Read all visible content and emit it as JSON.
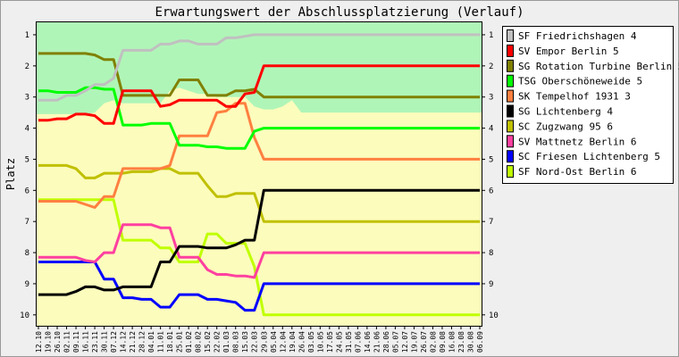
{
  "chart_data": {
    "type": "line",
    "title": "Erwartungswert der Abschlussplatzierung (Verlauf)",
    "ylabel": "Platz",
    "xlabel": "",
    "y_ticks": [
      1,
      2,
      3,
      4,
      5,
      6,
      7,
      8,
      9,
      10
    ],
    "ylim": [
      10.35,
      0.6
    ],
    "y_inverted": true,
    "grid": false,
    "legend_position": "right",
    "background_zones": [
      {
        "name": "top",
        "color": "#b0f5b8"
      },
      {
        "name": "bottom",
        "color": "#fcfcbc"
      }
    ],
    "categories": [
      "12.10",
      "19.10",
      "26.10",
      "02.11",
      "09.11",
      "16.11",
      "23.11",
      "30.11",
      "07.12",
      "14.12",
      "21.12",
      "28.12",
      "04.01",
      "11.01",
      "18.01",
      "25.01",
      "01.02",
      "08.02",
      "15.02",
      "22.02",
      "01.03",
      "08.03",
      "15.03",
      "22.03",
      "29.03",
      "05.04",
      "12.04",
      "19.04",
      "26.04",
      "03.05",
      "10.05",
      "17.05",
      "24.05",
      "31.05",
      "07.06",
      "14.06",
      "21.06",
      "28.06",
      "05.07",
      "12.07",
      "19.07",
      "26.07",
      "02.08",
      "09.08",
      "16.08",
      "23.08",
      "30.08",
      "06.09"
    ],
    "boundary": [
      3.55,
      3.55,
      3.55,
      3.55,
      3.55,
      3.55,
      3.5,
      3.2,
      3.1,
      3.2,
      3.2,
      3.2,
      3.2,
      3.2,
      2.8,
      2.7,
      2.8,
      2.9,
      2.9,
      3.0,
      3.0,
      3.0,
      3.0,
      3.3,
      3.4,
      3.4,
      3.3,
      3.1,
      3.5,
      3.5,
      3.5,
      3.5,
      3.5,
      3.5,
      3.5,
      3.5,
      3.5,
      3.5,
      3.5,
      3.5,
      3.5,
      3.5,
      3.5,
      3.5,
      3.5,
      3.5,
      3.5,
      3.5
    ],
    "series": [
      {
        "name": "SF Friedrichshagen 4",
        "color": "#c0c0c0",
        "values": [
          3.1,
          3.1,
          3.1,
          2.95,
          2.95,
          2.8,
          2.6,
          2.6,
          2.4,
          1.5,
          1.5,
          1.5,
          1.5,
          1.3,
          1.3,
          1.2,
          1.2,
          1.3,
          1.3,
          1.3,
          1.1,
          1.1,
          1.05,
          1.0,
          1.0,
          1.0,
          1.0,
          1.0,
          1.0,
          1.0,
          1.0,
          1.0,
          1.0,
          1.0,
          1.0,
          1.0,
          1.0,
          1.0,
          1.0,
          1.0,
          1.0,
          1.0,
          1.0,
          1.0,
          1.0,
          1.0,
          1.0,
          1.0
        ]
      },
      {
        "name": "SV Empor Berlin 5",
        "color": "#ff0000",
        "values": [
          3.75,
          3.75,
          3.7,
          3.7,
          3.55,
          3.55,
          3.6,
          3.85,
          3.85,
          2.8,
          2.8,
          2.8,
          2.8,
          3.3,
          3.25,
          3.1,
          3.1,
          3.1,
          3.1,
          3.1,
          3.3,
          3.3,
          2.9,
          2.85,
          2.0,
          2.0,
          2.0,
          2.0,
          2.0,
          2.0,
          2.0,
          2.0,
          2.0,
          2.0,
          2.0,
          2.0,
          2.0,
          2.0,
          2.0,
          2.0,
          2.0,
          2.0,
          2.0,
          2.0,
          2.0,
          2.0,
          2.0,
          2.0
        ]
      },
      {
        "name": "SG Rotation Turbine Berlin 5",
        "color": "#808000",
        "values": [
          1.6,
          1.6,
          1.6,
          1.6,
          1.6,
          1.6,
          1.65,
          1.8,
          1.8,
          2.95,
          2.95,
          2.95,
          2.95,
          2.95,
          2.95,
          2.45,
          2.45,
          2.45,
          2.95,
          2.95,
          2.95,
          2.8,
          2.8,
          2.75,
          3.0,
          3.0,
          3.0,
          3.0,
          3.0,
          3.0,
          3.0,
          3.0,
          3.0,
          3.0,
          3.0,
          3.0,
          3.0,
          3.0,
          3.0,
          3.0,
          3.0,
          3.0,
          3.0,
          3.0,
          3.0,
          3.0,
          3.0,
          3.0
        ]
      },
      {
        "name": "TSG Oberschöneweide 5",
        "color": "#00ff00",
        "values": [
          2.8,
          2.8,
          2.85,
          2.85,
          2.85,
          2.7,
          2.7,
          2.75,
          2.75,
          3.9,
          3.9,
          3.9,
          3.85,
          3.85,
          3.85,
          4.55,
          4.55,
          4.55,
          4.6,
          4.6,
          4.65,
          4.65,
          4.65,
          4.1,
          4.0,
          4.0,
          4.0,
          4.0,
          4.0,
          4.0,
          4.0,
          4.0,
          4.0,
          4.0,
          4.0,
          4.0,
          4.0,
          4.0,
          4.0,
          4.0,
          4.0,
          4.0,
          4.0,
          4.0,
          4.0,
          4.0,
          4.0,
          4.0
        ]
      },
      {
        "name": "SK Tempelhof 1931 3",
        "color": "#ff8040",
        "values": [
          6.35,
          6.35,
          6.35,
          6.35,
          6.35,
          6.45,
          6.55,
          6.2,
          6.2,
          5.3,
          5.3,
          5.3,
          5.3,
          5.3,
          5.2,
          4.25,
          4.25,
          4.25,
          4.25,
          3.5,
          3.45,
          3.2,
          3.2,
          4.3,
          5.0,
          5.0,
          5.0,
          5.0,
          5.0,
          5.0,
          5.0,
          5.0,
          5.0,
          5.0,
          5.0,
          5.0,
          5.0,
          5.0,
          5.0,
          5.0,
          5.0,
          5.0,
          5.0,
          5.0,
          5.0,
          5.0,
          5.0,
          5.0
        ]
      },
      {
        "name": "SG Lichtenberg 4",
        "color": "#000000",
        "values": [
          9.35,
          9.35,
          9.35,
          9.35,
          9.25,
          9.1,
          9.1,
          9.2,
          9.2,
          9.1,
          9.1,
          9.1,
          9.1,
          8.3,
          8.3,
          7.8,
          7.8,
          7.8,
          7.85,
          7.85,
          7.85,
          7.75,
          7.6,
          7.6,
          6.0,
          6.0,
          6.0,
          6.0,
          6.0,
          6.0,
          6.0,
          6.0,
          6.0,
          6.0,
          6.0,
          6.0,
          6.0,
          6.0,
          6.0,
          6.0,
          6.0,
          6.0,
          6.0,
          6.0,
          6.0,
          6.0,
          6.0,
          6.0
        ]
      },
      {
        "name": "SC Zugzwang 95 6",
        "color": "#c0c000",
        "values": [
          5.2,
          5.2,
          5.2,
          5.2,
          5.3,
          5.6,
          5.6,
          5.45,
          5.45,
          5.45,
          5.4,
          5.4,
          5.4,
          5.3,
          5.3,
          5.45,
          5.45,
          5.45,
          5.85,
          6.2,
          6.2,
          6.1,
          6.1,
          6.1,
          7.0,
          7.0,
          7.0,
          7.0,
          7.0,
          7.0,
          7.0,
          7.0,
          7.0,
          7.0,
          7.0,
          7.0,
          7.0,
          7.0,
          7.0,
          7.0,
          7.0,
          7.0,
          7.0,
          7.0,
          7.0,
          7.0,
          7.0,
          7.0
        ]
      },
      {
        "name": "SV Mattnetz Berlin 6",
        "color": "#ff40a0",
        "values": [
          8.15,
          8.15,
          8.15,
          8.15,
          8.15,
          8.25,
          8.3,
          8.0,
          8.0,
          7.1,
          7.1,
          7.1,
          7.1,
          7.2,
          7.2,
          8.15,
          8.15,
          8.15,
          8.55,
          8.7,
          8.7,
          8.75,
          8.75,
          8.8,
          8.0,
          8.0,
          8.0,
          8.0,
          8.0,
          8.0,
          8.0,
          8.0,
          8.0,
          8.0,
          8.0,
          8.0,
          8.0,
          8.0,
          8.0,
          8.0,
          8.0,
          8.0,
          8.0,
          8.0,
          8.0,
          8.0,
          8.0,
          8.0
        ]
      },
      {
        "name": "SC Friesen Lichtenberg 5",
        "color": "#0000ff",
        "values": [
          8.3,
          8.3,
          8.3,
          8.3,
          8.3,
          8.3,
          8.3,
          8.85,
          8.85,
          9.45,
          9.45,
          9.5,
          9.5,
          9.75,
          9.75,
          9.35,
          9.35,
          9.35,
          9.5,
          9.5,
          9.55,
          9.6,
          9.85,
          9.85,
          9.0,
          9.0,
          9.0,
          9.0,
          9.0,
          9.0,
          9.0,
          9.0,
          9.0,
          9.0,
          9.0,
          9.0,
          9.0,
          9.0,
          9.0,
          9.0,
          9.0,
          9.0,
          9.0,
          9.0,
          9.0,
          9.0,
          9.0,
          9.0
        ]
      },
      {
        "name": "SF Nord-Ost Berlin 6",
        "color": "#c0ff00",
        "values": [
          6.3,
          6.3,
          6.3,
          6.3,
          6.3,
          6.3,
          6.3,
          6.3,
          6.3,
          7.6,
          7.6,
          7.6,
          7.6,
          7.85,
          7.85,
          8.3,
          8.3,
          8.3,
          7.4,
          7.4,
          7.7,
          7.7,
          7.7,
          8.45,
          10.0,
          10.0,
          10.0,
          10.0,
          10.0,
          10.0,
          10.0,
          10.0,
          10.0,
          10.0,
          10.0,
          10.0,
          10.0,
          10.0,
          10.0,
          10.0,
          10.0,
          10.0,
          10.0,
          10.0,
          10.0,
          10.0,
          10.0,
          10.0
        ]
      }
    ]
  }
}
